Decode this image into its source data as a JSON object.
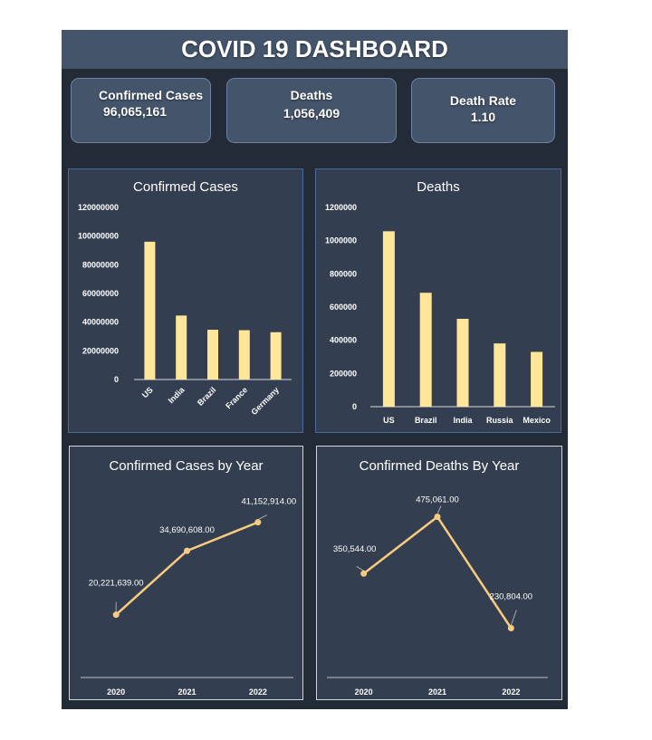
{
  "header": {
    "title": "COVID 19 DASHBOARD"
  },
  "kpis": [
    {
      "label": "Confirmed Cases",
      "value": "96,065,161"
    },
    {
      "label": "Deaths",
      "value": "1,056,409"
    },
    {
      "label": "Death Rate",
      "value": "1.10"
    }
  ],
  "colors": {
    "bar": "#ffe699",
    "line": "#f8cb7f",
    "panel": "#333f50",
    "background": "#232b36",
    "header": "#44546a"
  },
  "chart_data": [
    {
      "type": "bar",
      "title": "Confirmed Cases",
      "categories": [
        "US",
        "India",
        "Brazil",
        "France",
        "Germany"
      ],
      "values": [
        96065161,
        44600000,
        34700000,
        34400000,
        33000000
      ],
      "ylim": [
        0,
        120000000
      ],
      "yticks": [
        "0",
        "20000000",
        "40000000",
        "60000000",
        "80000000",
        "100000000",
        "120000000"
      ],
      "xlabel": "",
      "ylabel": "",
      "grid": false,
      "legend": "none"
    },
    {
      "type": "bar",
      "title": "Deaths",
      "categories": [
        "US",
        "Brazil",
        "India",
        "Russia",
        "Mexico"
      ],
      "values": [
        1056409,
        686000,
        529000,
        381000,
        330000
      ],
      "ylim": [
        0,
        1200000
      ],
      "yticks": [
        "0",
        "200000",
        "400000",
        "600000",
        "800000",
        "1000000",
        "1200000"
      ],
      "xlabel": "",
      "ylabel": "",
      "grid": false,
      "legend": "none"
    },
    {
      "type": "line",
      "title": "Confirmed Cases by Year",
      "x": [
        "2020",
        "2021",
        "2022"
      ],
      "values": [
        20221639,
        34690608,
        41152914
      ],
      "data_labels": [
        "20,221,639.00",
        "34,690,608.00",
        "41,152,914.00"
      ],
      "xlabel": "",
      "ylabel": "",
      "grid": false,
      "legend": "none"
    },
    {
      "type": "line",
      "title": "Confirmed Deaths By Year",
      "x": [
        "2020",
        "2021",
        "2022"
      ],
      "values": [
        350544,
        475061,
        230804
      ],
      "data_labels": [
        "350,544.00",
        "475,061.00",
        "230,804.00"
      ],
      "xlabel": "",
      "ylabel": "",
      "grid": false,
      "legend": "none"
    }
  ]
}
